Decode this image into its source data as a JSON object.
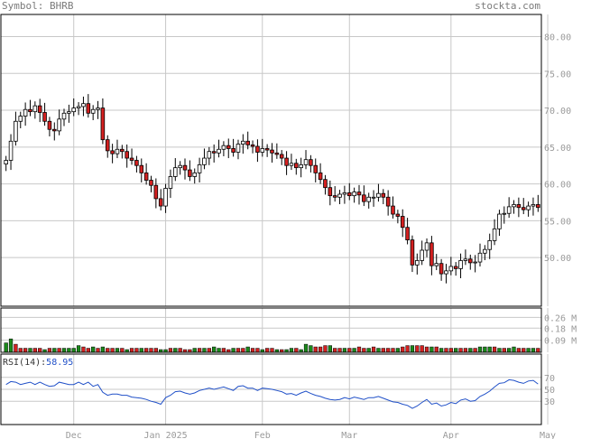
{
  "header": {
    "symbol_label": "Symbol: BHRB",
    "brand": "stockta.com"
  },
  "colors": {
    "up_candle": "#ffffff",
    "down_candle": "#d42020",
    "volume_up": "#1a8a1a",
    "volume_down": "#d42020",
    "rsi_line": "#2050c8",
    "grid": "#c8c8c8"
  },
  "chart_data": [
    {
      "type": "candlestick",
      "title": "",
      "yticks": [
        "80.00",
        "75.00",
        "70.00",
        "65.00",
        "60.00",
        "55.00",
        "50.00"
      ],
      "ytick_values": [
        80,
        75,
        70,
        65,
        60,
        55,
        50
      ],
      "ylim": [
        43.4,
        83.0
      ],
      "x_labels": [
        "Dec",
        "Jan 2025",
        "Feb",
        "Mar",
        "Apr",
        "May"
      ],
      "x_label_index": [
        14,
        33,
        53,
        71,
        92,
        112
      ],
      "closes": [
        63.2,
        65.8,
        68.5,
        69.2,
        70.1,
        69.8,
        70.6,
        69.7,
        68.5,
        67.4,
        67.2,
        68.8,
        69.6,
        69.8,
        70.3,
        70.5,
        70.9,
        69.6,
        70.1,
        70.3,
        66.0,
        64.5,
        64.1,
        64.7,
        64.4,
        63.5,
        63.2,
        62.5,
        61.5,
        60.5,
        59.8,
        58.0,
        57.0,
        59.4,
        61.0,
        62.2,
        62.5,
        61.9,
        61.0,
        61.5,
        62.6,
        63.5,
        64.4,
        64.2,
        64.7,
        65.2,
        64.8,
        64.3,
        65.4,
        65.8,
        65.3,
        65.1,
        64.3,
        64.8,
        64.6,
        64.2,
        64.0,
        63.5,
        62.5,
        62.8,
        62.2,
        62.6,
        63.3,
        62.5,
        61.5,
        60.6,
        59.5,
        58.4,
        58.2,
        58.6,
        58.8,
        58.4,
        58.9,
        58.5,
        57.6,
        58.2,
        58.2,
        58.7,
        58.2,
        57.0,
        55.9,
        55.6,
        54.1,
        52.4,
        49.0,
        49.6,
        51.0,
        52.0,
        48.9,
        49.2,
        47.8,
        48.2,
        48.8,
        48.5,
        49.6,
        49.8,
        49.3,
        49.4,
        50.6,
        51.1,
        52.3,
        53.9,
        55.9,
        56.0,
        56.9,
        57.2,
        56.8,
        56.5,
        57.0,
        57.2,
        56.8
      ],
      "volume_yticks": [
        "0.26 M",
        "0.18 M",
        "0.09 M"
      ],
      "volume_ytick_values": [
        0.26,
        0.18,
        0.09
      ],
      "volume_ylim": [
        0,
        0.33
      ],
      "volume": [
        0.07,
        0.1,
        0.06,
        0.03,
        0.03,
        0.03,
        0.03,
        0.03,
        0.02,
        0.03,
        0.03,
        0.03,
        0.03,
        0.03,
        0.03,
        0.05,
        0.04,
        0.03,
        0.04,
        0.03,
        0.04,
        0.03,
        0.03,
        0.03,
        0.03,
        0.02,
        0.03,
        0.03,
        0.03,
        0.03,
        0.03,
        0.03,
        0.02,
        0.02,
        0.03,
        0.03,
        0.03,
        0.02,
        0.02,
        0.03,
        0.03,
        0.03,
        0.03,
        0.04,
        0.03,
        0.03,
        0.02,
        0.03,
        0.03,
        0.03,
        0.04,
        0.03,
        0.03,
        0.02,
        0.03,
        0.03,
        0.02,
        0.02,
        0.02,
        0.03,
        0.03,
        0.02,
        0.06,
        0.05,
        0.04,
        0.04,
        0.05,
        0.05,
        0.03,
        0.03,
        0.03,
        0.03,
        0.03,
        0.04,
        0.03,
        0.03,
        0.04,
        0.03,
        0.03,
        0.03,
        0.03,
        0.03,
        0.04,
        0.05,
        0.05,
        0.05,
        0.05,
        0.04,
        0.04,
        0.04,
        0.03,
        0.03,
        0.03,
        0.03,
        0.03,
        0.03,
        0.03,
        0.03,
        0.04,
        0.04,
        0.04,
        0.04,
        0.03,
        0.03,
        0.03,
        0.04,
        0.03,
        0.03,
        0.03,
        0.03,
        0.03
      ],
      "volume_up": [
        1,
        1,
        0,
        0,
        0,
        1,
        0,
        0,
        1,
        0,
        1,
        0,
        1,
        1,
        1,
        1,
        0,
        0,
        1,
        0,
        1,
        0,
        0,
        1,
        0,
        1,
        0,
        0,
        1,
        0,
        0,
        0,
        1,
        1,
        0,
        1,
        0,
        0,
        0,
        1,
        0,
        1,
        0,
        1,
        1,
        0,
        0,
        1,
        0,
        0,
        1,
        0,
        0,
        1,
        0,
        0,
        1,
        0,
        1,
        1,
        0,
        1,
        1,
        1,
        0,
        0,
        0,
        1,
        0,
        0,
        1,
        0,
        1,
        0,
        0,
        1,
        0,
        1,
        0,
        0,
        0,
        1,
        0,
        0,
        1,
        0,
        0,
        0,
        1,
        0,
        1,
        0,
        0,
        1,
        0,
        0,
        1,
        0,
        1,
        1,
        1,
        0,
        1,
        0,
        1,
        1,
        0,
        0,
        1,
        1,
        0
      ],
      "rsi_label": "RSI(14):",
      "rsi_value": "58.95",
      "rsi_yticks": [
        "70",
        "50",
        "30"
      ],
      "rsi_ytick_values": [
        70,
        50,
        30
      ],
      "rsi_ylim": [
        0,
        100
      ],
      "rsi": [
        58,
        63,
        62,
        58,
        60,
        62,
        58,
        62,
        58,
        55,
        56,
        62,
        60,
        58,
        58,
        62,
        58,
        62,
        55,
        58,
        45,
        40,
        42,
        42,
        40,
        40,
        37,
        36,
        35,
        33,
        30,
        28,
        25,
        36,
        40,
        46,
        47,
        44,
        42,
        44,
        48,
        50,
        52,
        50,
        52,
        54,
        51,
        48,
        55,
        56,
        52,
        52,
        48,
        52,
        51,
        50,
        48,
        46,
        42,
        43,
        40,
        44,
        47,
        43,
        40,
        38,
        35,
        33,
        32,
        33,
        36,
        34,
        37,
        35,
        33,
        36,
        36,
        38,
        35,
        32,
        29,
        28,
        25,
        23,
        18,
        22,
        28,
        33,
        25,
        27,
        22,
        24,
        28,
        26,
        32,
        34,
        30,
        31,
        38,
        42,
        47,
        54,
        60,
        61,
        66,
        65,
        62,
        60,
        64,
        65,
        59
      ]
    }
  ]
}
